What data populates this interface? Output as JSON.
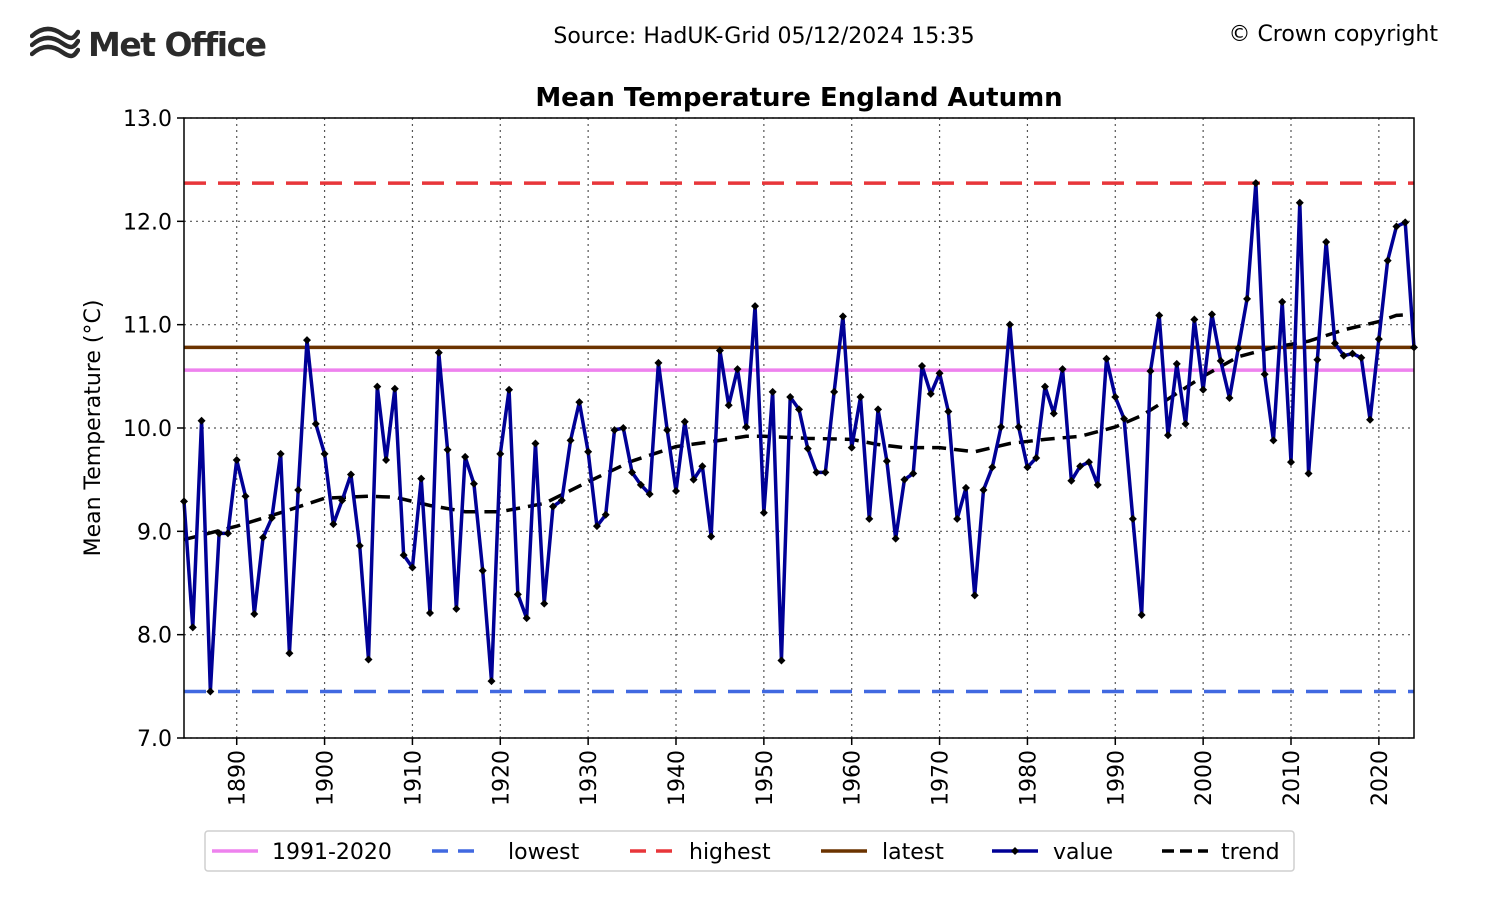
{
  "header": {
    "logo_text": "Met Office",
    "source": "Source: HadUK-Grid 05/12/2024 15:35",
    "copyright": "© Crown copyright"
  },
  "chart_data": {
    "type": "line",
    "title": "Mean Temperature England Autumn",
    "ylabel": "Mean Temperature (°C)",
    "xlabel": "",
    "xlim": [
      1884,
      2024
    ],
    "ylim": [
      7.0,
      13.0
    ],
    "yticks": [
      "7.0",
      "8.0",
      "9.0",
      "10.0",
      "11.0",
      "12.0",
      "13.0"
    ],
    "xticks": [
      "1890",
      "1900",
      "1910",
      "1920",
      "1930",
      "1940",
      "1950",
      "1960",
      "1970",
      "1980",
      "1990",
      "2000",
      "2010",
      "2020"
    ],
    "grid": true,
    "legend_position": "bottom",
    "reference_lines": [
      {
        "name": "1991-2020",
        "value": 10.56,
        "color": "#ee82ee",
        "style": "solid"
      },
      {
        "name": "lowest",
        "value": 7.45,
        "color": "#4169e1",
        "style": "dashed"
      },
      {
        "name": "highest",
        "value": 12.37,
        "color": "#e8363a",
        "style": "dashed"
      },
      {
        "name": "latest",
        "value": 10.78,
        "color": "#6b3300",
        "style": "solid"
      }
    ],
    "series": [
      {
        "name": "value",
        "color": "#000096",
        "x_start": 1884,
        "values": [
          9.29,
          8.07,
          10.07,
          7.45,
          8.98,
          8.98,
          9.69,
          9.34,
          8.2,
          8.94,
          9.13,
          9.75,
          7.82,
          9.4,
          10.85,
          10.04,
          9.75,
          9.07,
          9.3,
          9.55,
          8.86,
          7.76,
          10.4,
          9.69,
          10.38,
          8.77,
          8.65,
          9.51,
          8.21,
          10.73,
          9.79,
          8.25,
          9.72,
          9.46,
          8.62,
          7.55,
          9.75,
          10.37,
          8.39,
          8.16,
          9.85,
          8.3,
          9.24,
          9.3,
          9.88,
          10.25,
          9.77,
          9.05,
          9.16,
          9.98,
          10.0,
          9.57,
          9.45,
          9.36,
          10.63,
          9.98,
          9.39,
          10.06,
          9.5,
          9.63,
          8.95,
          10.75,
          10.22,
          10.57,
          10.01,
          11.18,
          9.18,
          10.35,
          7.75,
          10.3,
          10.18,
          9.8,
          9.57,
          9.57,
          10.35,
          11.08,
          9.81,
          10.3,
          9.12,
          10.18,
          9.68,
          8.93,
          9.5,
          9.56,
          10.6,
          10.33,
          10.53,
          10.16,
          9.12,
          9.42,
          8.38,
          9.4,
          9.62,
          10.01,
          11.0,
          10.01,
          9.62,
          9.71,
          10.4,
          10.14,
          10.57,
          9.49,
          9.63,
          9.67,
          9.45,
          10.67,
          10.3,
          10.09,
          9.12,
          8.19,
          10.55,
          11.09,
          9.93,
          10.62,
          10.04,
          11.05,
          10.37,
          11.1,
          10.65,
          10.29,
          10.77,
          11.25,
          12.37,
          10.52,
          9.88,
          11.22,
          9.67,
          12.18,
          9.56,
          10.66,
          11.8,
          10.82,
          10.7,
          10.72,
          10.68,
          10.08,
          10.86,
          11.62,
          11.95,
          11.99,
          10.78
        ]
      },
      {
        "name": "trend",
        "color": "#000000",
        "x": [
          1884,
          1890,
          1895,
          1900,
          1905,
          1908,
          1912,
          1916,
          1920,
          1925,
          1930,
          1935,
          1940,
          1945,
          1948,
          1950,
          1955,
          1960,
          1963,
          1966,
          1970,
          1974,
          1978,
          1982,
          1986,
          1990,
          1993,
          1996,
          2000,
          2004,
          2008,
          2012,
          2016,
          2020,
          2022,
          2024
        ],
        "values": [
          8.92,
          9.05,
          9.18,
          9.32,
          9.34,
          9.33,
          9.25,
          9.19,
          9.19,
          9.27,
          9.48,
          9.68,
          9.82,
          9.88,
          9.92,
          9.92,
          9.9,
          9.89,
          9.84,
          9.81,
          9.81,
          9.77,
          9.85,
          9.89,
          9.92,
          10.01,
          10.12,
          10.28,
          10.5,
          10.69,
          10.78,
          10.84,
          10.95,
          11.03,
          11.09,
          11.1
        ]
      }
    ]
  }
}
